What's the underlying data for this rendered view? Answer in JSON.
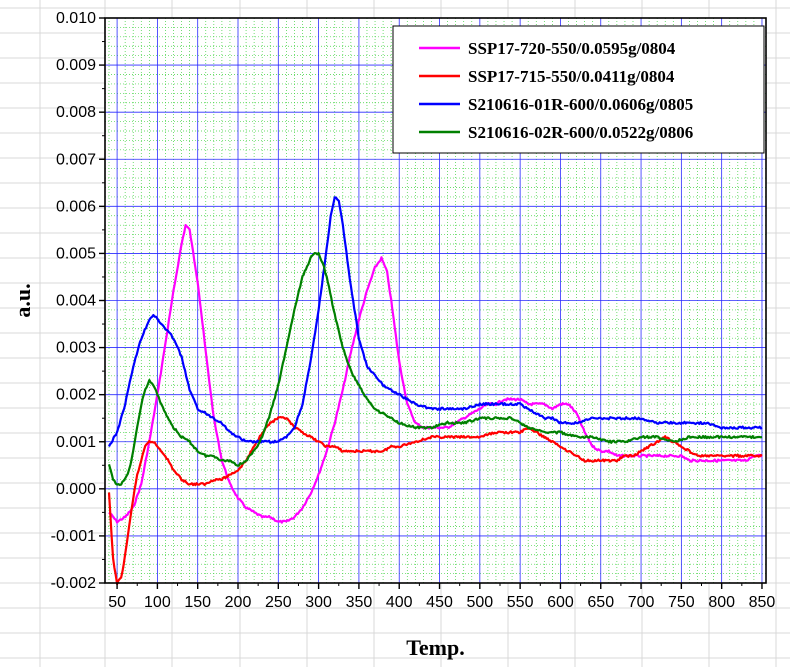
{
  "chart_data": {
    "type": "line",
    "title": "",
    "xlabel": "Temp.",
    "ylabel": "a.u.",
    "xlim": [
      35,
      855
    ],
    "ylim": [
      -0.002,
      0.01
    ],
    "x_ticks": [
      50,
      100,
      150,
      200,
      250,
      300,
      350,
      400,
      450,
      500,
      550,
      600,
      650,
      700,
      750,
      800,
      850
    ],
    "x_tick_labels": [
      "50",
      "100",
      "150",
      "200",
      "250",
      "300",
      "350",
      "400",
      "450",
      "500",
      "550",
      "600",
      "650",
      "700",
      "750",
      "800",
      "850"
    ],
    "y_ticks": [
      -0.002,
      -0.001,
      0.0,
      0.001,
      0.002,
      0.003,
      0.004,
      0.005,
      0.006,
      0.007,
      0.008,
      0.009,
      0.01
    ],
    "y_tick_labels": [
      "-0.002",
      "-0.001",
      "0.000",
      "0.001",
      "0.002",
      "0.003",
      "0.004",
      "0.005",
      "0.006",
      "0.007",
      "0.008",
      "0.009",
      "0.010"
    ],
    "grid": true,
    "legend_position": "top-right",
    "series": [
      {
        "name": "SSP17-720-550/0.0595g/0804",
        "color": "#ff00ff",
        "x": [
          40,
          50,
          60,
          70,
          80,
          90,
          100,
          110,
          120,
          130,
          135,
          140,
          150,
          160,
          170,
          180,
          190,
          200,
          210,
          220,
          230,
          240,
          250,
          260,
          270,
          280,
          290,
          300,
          310,
          320,
          330,
          340,
          350,
          360,
          370,
          378,
          385,
          390,
          400,
          410,
          420,
          430,
          440,
          450,
          460,
          470,
          480,
          490,
          500,
          510,
          520,
          530,
          540,
          550,
          560,
          570,
          580,
          590,
          600,
          610,
          620,
          630,
          640,
          650,
          660,
          670,
          680,
          690,
          700,
          710,
          720,
          730,
          740,
          750,
          760,
          770,
          780,
          790,
          800,
          810,
          820,
          830,
          840,
          850
        ],
        "y": [
          -0.0005,
          -0.0007,
          -0.0006,
          -0.0004,
          0.0001,
          0.001,
          0.002,
          0.0031,
          0.0042,
          0.0052,
          0.0056,
          0.0055,
          0.0044,
          0.0029,
          0.0015,
          0.0006,
          0.0001,
          -0.0002,
          -0.0004,
          -0.0005,
          -0.0006,
          -0.0006,
          -0.0007,
          -0.0007,
          -0.0006,
          -0.0004,
          -0.0001,
          0.0003,
          0.0008,
          0.0014,
          0.0021,
          0.0029,
          0.0036,
          0.0042,
          0.0047,
          0.0049,
          0.0046,
          0.004,
          0.0027,
          0.0018,
          0.0014,
          0.0013,
          0.0013,
          0.0013,
          0.0013,
          0.0014,
          0.0015,
          0.0016,
          0.0017,
          0.0018,
          0.0018,
          0.0019,
          0.0019,
          0.0019,
          0.0018,
          0.0018,
          0.0018,
          0.0017,
          0.0018,
          0.0018,
          0.0016,
          0.0012,
          0.0009,
          0.0008,
          0.0008,
          0.0007,
          0.0007,
          0.0007,
          0.0007,
          0.0007,
          0.0007,
          0.0007,
          0.0007,
          0.0007,
          0.0006,
          0.0006,
          0.0006,
          0.0006,
          0.0006,
          0.0006,
          0.0006,
          0.0006,
          0.0007,
          0.0007
        ]
      },
      {
        "name": "SSP17-715-550/0.0411g/0804",
        "color": "#ff0000",
        "x": [
          40,
          45,
          50,
          55,
          60,
          65,
          70,
          75,
          80,
          85,
          90,
          95,
          100,
          110,
          120,
          130,
          140,
          150,
          160,
          170,
          180,
          190,
          200,
          210,
          220,
          230,
          240,
          250,
          260,
          270,
          280,
          290,
          300,
          310,
          320,
          330,
          340,
          350,
          360,
          370,
          380,
          390,
          400,
          420,
          440,
          460,
          480,
          500,
          520,
          540,
          550,
          560,
          570,
          580,
          590,
          600,
          610,
          620,
          630,
          640,
          650,
          660,
          670,
          680,
          690,
          700,
          710,
          720,
          730,
          740,
          750,
          760,
          770,
          780,
          790,
          800,
          810,
          820,
          830,
          840,
          850
        ],
        "y": [
          -0.0001,
          -0.0015,
          -0.002,
          -0.0019,
          -0.0014,
          -0.0008,
          -0.0002,
          0.0003,
          0.0006,
          0.0009,
          0.001,
          0.001,
          0.0009,
          0.0007,
          0.0004,
          0.0002,
          0.0001,
          0.0001,
          0.0001,
          0.0002,
          0.0002,
          0.0003,
          0.0004,
          0.0006,
          0.0009,
          0.0012,
          0.0014,
          0.0015,
          0.0015,
          0.0013,
          0.0012,
          0.0011,
          0.001,
          0.0009,
          0.0009,
          0.0008,
          0.0008,
          0.0008,
          0.0008,
          0.0008,
          0.0008,
          0.0009,
          0.0009,
          0.001,
          0.0011,
          0.0011,
          0.0011,
          0.0011,
          0.0012,
          0.0012,
          0.0012,
          0.0013,
          0.0012,
          0.0011,
          0.001,
          0.0009,
          0.0008,
          0.0007,
          0.0006,
          0.0006,
          0.0006,
          0.0006,
          0.0006,
          0.0007,
          0.0007,
          0.0008,
          0.0009,
          0.001,
          0.0011,
          0.001,
          0.0009,
          0.0008,
          0.0007,
          0.0007,
          0.0007,
          0.0007,
          0.0007,
          0.0007,
          0.0007,
          0.0007,
          0.0007
        ]
      },
      {
        "name": "S210616-01R-600/0.0606g/0805",
        "color": "#0000ff",
        "x": [
          40,
          50,
          60,
          70,
          80,
          90,
          95,
          100,
          110,
          120,
          130,
          140,
          150,
          160,
          170,
          180,
          190,
          200,
          210,
          220,
          230,
          240,
          250,
          260,
          270,
          280,
          290,
          300,
          310,
          315,
          320,
          325,
          330,
          340,
          350,
          360,
          370,
          380,
          390,
          400,
          410,
          420,
          440,
          460,
          480,
          500,
          520,
          540,
          550,
          560,
          570,
          580,
          590,
          600,
          620,
          640,
          660,
          680,
          700,
          720,
          740,
          760,
          780,
          800,
          820,
          840,
          850
        ],
        "y": [
          0.0009,
          0.0012,
          0.0018,
          0.0026,
          0.0032,
          0.0036,
          0.0037,
          0.0036,
          0.0034,
          0.0032,
          0.0028,
          0.0021,
          0.0017,
          0.0016,
          0.0015,
          0.0014,
          0.0012,
          0.0011,
          0.001,
          0.001,
          0.001,
          0.001,
          0.001,
          0.0011,
          0.0013,
          0.0018,
          0.0027,
          0.0038,
          0.0051,
          0.0058,
          0.0062,
          0.0061,
          0.0056,
          0.0043,
          0.0032,
          0.0026,
          0.0024,
          0.0022,
          0.0021,
          0.002,
          0.0019,
          0.0018,
          0.0017,
          0.0017,
          0.0017,
          0.0018,
          0.0018,
          0.0018,
          0.0018,
          0.0017,
          0.0016,
          0.0015,
          0.0015,
          0.0014,
          0.0014,
          0.0015,
          0.0015,
          0.0015,
          0.0015,
          0.0014,
          0.0014,
          0.0014,
          0.0014,
          0.0013,
          0.0013,
          0.0013,
          0.0013
        ]
      },
      {
        "name": "S210616-02R-600/0.0522g/0806",
        "color": "#008000",
        "x": [
          40,
          45,
          50,
          55,
          60,
          65,
          70,
          75,
          80,
          85,
          90,
          95,
          100,
          105,
          110,
          120,
          130,
          140,
          150,
          160,
          170,
          180,
          190,
          200,
          210,
          220,
          230,
          240,
          250,
          260,
          270,
          280,
          290,
          295,
          300,
          305,
          310,
          320,
          330,
          340,
          350,
          360,
          370,
          380,
          390,
          400,
          420,
          440,
          460,
          480,
          500,
          520,
          540,
          550,
          560,
          580,
          600,
          620,
          640,
          660,
          680,
          700,
          720,
          740,
          760,
          780,
          800,
          820,
          840,
          850
        ],
        "y": [
          0.0005,
          0.0002,
          0.0001,
          0.0001,
          0.0002,
          0.0004,
          0.0008,
          0.0013,
          0.0018,
          0.0021,
          0.0023,
          0.0022,
          0.002,
          0.0018,
          0.0016,
          0.0013,
          0.0011,
          0.001,
          0.0008,
          0.0007,
          0.0007,
          0.0006,
          0.0006,
          0.0005,
          0.0006,
          0.0008,
          0.0011,
          0.0016,
          0.0022,
          0.003,
          0.0038,
          0.0045,
          0.0049,
          0.005,
          0.005,
          0.0048,
          0.0045,
          0.0037,
          0.003,
          0.0025,
          0.0022,
          0.0019,
          0.0017,
          0.0016,
          0.0015,
          0.0014,
          0.0013,
          0.0013,
          0.0014,
          0.0014,
          0.0015,
          0.0015,
          0.0015,
          0.0014,
          0.0013,
          0.0012,
          0.0012,
          0.0011,
          0.0011,
          0.001,
          0.001,
          0.0011,
          0.0011,
          0.001,
          0.0011,
          0.0011,
          0.0011,
          0.0011,
          0.0011,
          0.0011
        ]
      }
    ]
  }
}
